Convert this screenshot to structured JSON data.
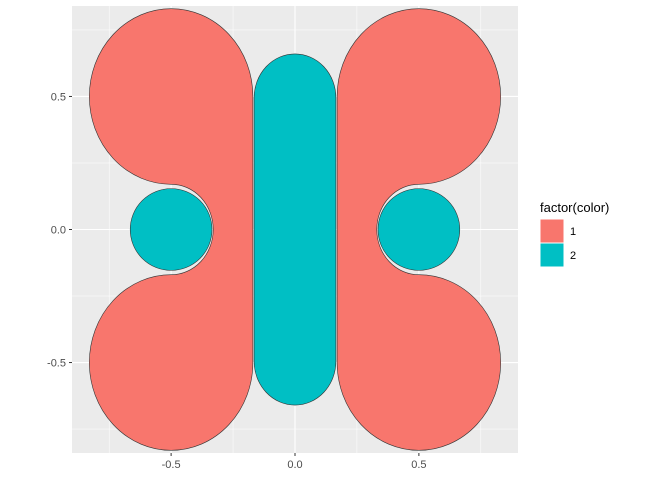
{
  "chart_data": {
    "type": "polygon",
    "title": "",
    "xlabel": "",
    "ylabel": "",
    "xlim": [
      -0.9,
      0.9
    ],
    "ylim": [
      -0.84,
      0.84
    ],
    "grid": true,
    "legend_position": "right",
    "x_ticks": [
      -0.5,
      0.0,
      0.5
    ],
    "x_tick_labels": [
      "-0.5",
      "0.0",
      "0.5"
    ],
    "y_ticks": [
      -0.5,
      0.0,
      0.5
    ],
    "y_tick_labels": [
      "-0.5",
      "0.0",
      "0.5"
    ],
    "legend": {
      "title": "factor(color)",
      "entries": [
        {
          "label": "1",
          "color": "#F8766D"
        },
        {
          "label": "2",
          "color": "#00BFC4"
        }
      ]
    },
    "colors": {
      "panel_bg": "#EBEBEB",
      "grid": "#FFFFFF",
      "outline": "#333333"
    },
    "shapes": [
      {
        "id": "left-wing",
        "color_group": "1",
        "description": "two circles (centers x=-0.5, y=±0.5, r≈0.33) joined by vertical band x -0.5 to -0.17, notched by circle at (-0.5,0) r≈0.165"
      },
      {
        "id": "right-wing",
        "color_group": "1",
        "description": "mirror of left-wing about x=0"
      },
      {
        "id": "body",
        "color_group": "2",
        "x": [
          -0.165,
          0.165
        ],
        "y": [
          -0.66,
          0.66
        ],
        "shape": "stadium"
      },
      {
        "id": "left-spot",
        "color_group": "2",
        "center": [
          -0.5,
          0.0
        ],
        "r": 0.165
      },
      {
        "id": "right-spot",
        "color_group": "2",
        "center": [
          0.5,
          0.0
        ],
        "r": 0.165
      }
    ]
  }
}
